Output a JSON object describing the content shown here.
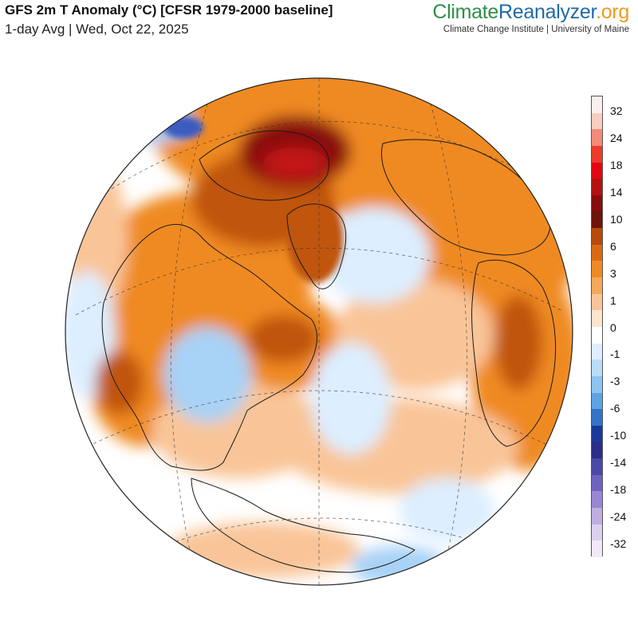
{
  "header": {
    "title": "GFS 2m T Anomaly (°C) [CFSR 1979-2000 baseline]",
    "subtitle": "1-day Avg | Wed, Oct 22, 2025"
  },
  "brand": {
    "name_part1": "Climate",
    "name_part2": "Reanalyzer",
    "name_part3": ".org",
    "affiliation": "Climate Change Institute | University of Maine"
  },
  "legend": {
    "labels": [
      "32",
      "24",
      "18",
      "14",
      "10",
      "6",
      "3",
      "1",
      "0",
      "-1",
      "-3",
      "-6",
      "-10",
      "-14",
      "-18",
      "-24",
      "-32"
    ],
    "colors": [
      "#fbeeee",
      "#f9cdbf",
      "#f48a7a",
      "#ee3a2a",
      "#e30613",
      "#b31212",
      "#8a0d0d",
      "#6e1408",
      "#b84a0a",
      "#d96a10",
      "#ef8a24",
      "#f6a85a",
      "#f9c598",
      "#fde4cc",
      "#ffffff",
      "#dceeff",
      "#b8dcfa",
      "#8cc4f2",
      "#5ea3e4",
      "#3373c8",
      "#1a3a9a",
      "#2a2e8a",
      "#4a48a8",
      "#6e64c0",
      "#9a86d4",
      "#c0aee2",
      "#dccff0",
      "#f2e8f8"
    ]
  },
  "map": {
    "projection": "orthographic",
    "colors": {
      "ocean_neutral": "#ffffff",
      "warm_light": "#f9c598",
      "warm_mid": "#ef8a24",
      "warm_strong": "#c0550d",
      "hot": "#8a1010",
      "very_hot": "#c41414",
      "cool_light": "#dceeff",
      "cool_mid": "#a8d2f6",
      "cold": "#3a5cc0"
    }
  }
}
